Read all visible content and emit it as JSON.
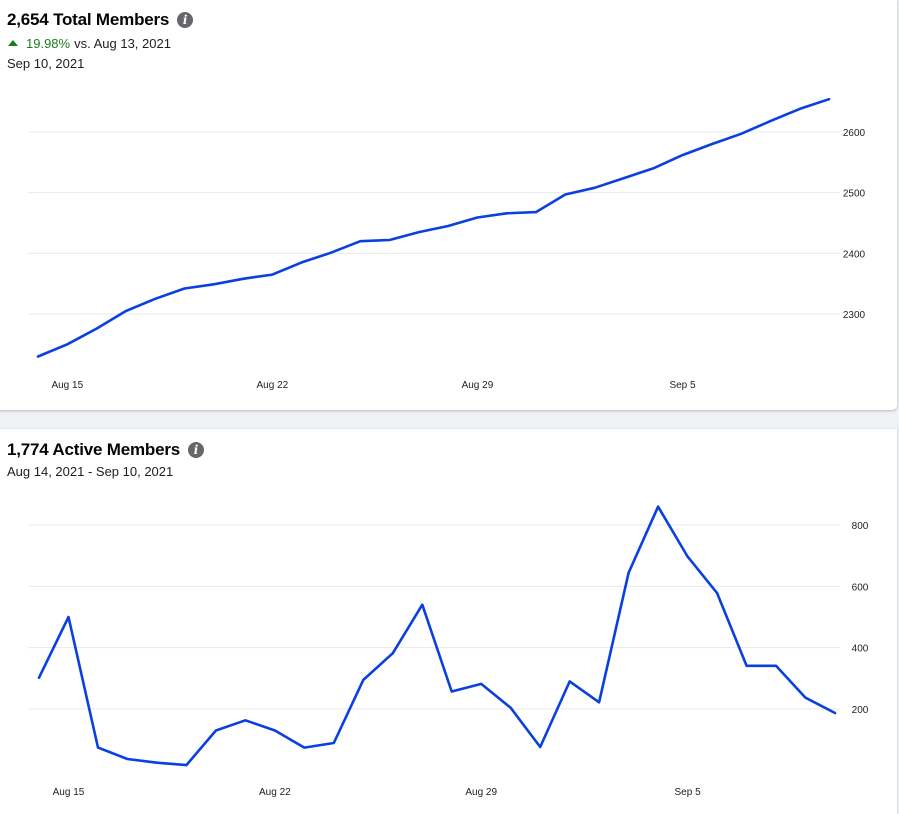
{
  "panels": [
    {
      "title": "2,654 Total Members",
      "change_pct": "19.98%",
      "change_vs": "vs. Aug 13, 2021",
      "date": "Sep 10, 2021",
      "trend_color": "#1f7a1f",
      "info_icon": "info-icon"
    },
    {
      "title": "1,774 Active Members",
      "date": "Aug 14, 2021 - Sep 10, 2021",
      "info_icon": "info-icon"
    }
  ],
  "chart_data": [
    {
      "type": "line",
      "title": "2,654 Total Members",
      "xlabel": "",
      "ylabel": "",
      "x_ticks": [
        "Aug 15",
        "Aug 22",
        "Aug 29",
        "Sep 5"
      ],
      "y_ticks": [
        2300,
        2400,
        2500,
        2600
      ],
      "ylim": [
        2200,
        2660
      ],
      "y_axis_side": "right",
      "grid": true,
      "color": "#0a3fe0",
      "x": [
        "Aug 14",
        "Aug 15",
        "Aug 16",
        "Aug 17",
        "Aug 18",
        "Aug 19",
        "Aug 20",
        "Aug 21",
        "Aug 22",
        "Aug 23",
        "Aug 24",
        "Aug 25",
        "Aug 26",
        "Aug 27",
        "Aug 28",
        "Aug 29",
        "Aug 30",
        "Aug 31",
        "Sep 1",
        "Sep 2",
        "Sep 3",
        "Sep 4",
        "Sep 5",
        "Sep 6",
        "Sep 7",
        "Sep 8",
        "Sep 9",
        "Sep 10"
      ],
      "values": [
        2230,
        2250,
        2276,
        2305,
        2325,
        2342,
        2349,
        2358,
        2365,
        2385,
        2401,
        2420,
        2422,
        2435,
        2445,
        2459,
        2466,
        2468,
        2497,
        2508,
        2524,
        2540,
        2562,
        2580,
        2597,
        2618,
        2638,
        2654
      ]
    },
    {
      "type": "line",
      "title": "1,774 Active Members",
      "xlabel": "",
      "ylabel": "",
      "x_ticks": [
        "Aug 15",
        "Aug 22",
        "Aug 29",
        "Sep 5"
      ],
      "y_ticks": [
        200,
        400,
        600,
        800
      ],
      "ylim": [
        0,
        900
      ],
      "y_axis_side": "right",
      "grid": true,
      "color": "#0a3fe0",
      "x": [
        "Aug 14",
        "Aug 15",
        "Aug 16",
        "Aug 17",
        "Aug 18",
        "Aug 19",
        "Aug 20",
        "Aug 21",
        "Aug 22",
        "Aug 23",
        "Aug 24",
        "Aug 25",
        "Aug 26",
        "Aug 27",
        "Aug 28",
        "Aug 29",
        "Aug 30",
        "Aug 31",
        "Sep 1",
        "Sep 2",
        "Sep 3",
        "Sep 4",
        "Sep 5",
        "Sep 6",
        "Sep 7",
        "Sep 8",
        "Sep 9",
        "Sep 10"
      ],
      "values": [
        302,
        500,
        74,
        37,
        25,
        17,
        130,
        163,
        130,
        74,
        89,
        295,
        382,
        540,
        257,
        282,
        204,
        76,
        290,
        222,
        644,
        860,
        697,
        578,
        341,
        341,
        237,
        187
      ]
    }
  ]
}
